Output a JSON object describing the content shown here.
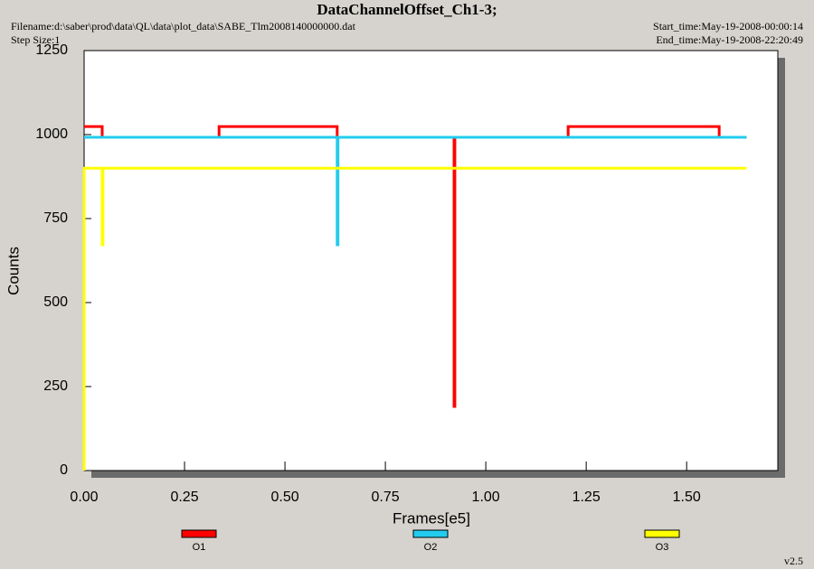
{
  "chart_data": {
    "type": "line",
    "title": "DataChannelOffset_Ch1-3;",
    "filename": "Filename:d:\\saber\\prod\\data\\QL\\data\\plot_data\\SABE_Tlm2008140000000.dat",
    "step_size": "Step Size:1",
    "start_time": "Start_time:May-19-2008-00:00:14",
    "end_time": "End_time:May-19-2008-22:20:49",
    "version": "v2.5",
    "x_label": "Frames[e5]",
    "y_label": "Counts",
    "xlim": [
      0,
      1.727
    ],
    "ylim": [
      0,
      1250
    ],
    "xticks": [
      {
        "value": 0,
        "label": "0.00"
      },
      {
        "value": 0.25,
        "label": "0.25"
      },
      {
        "value": 0.5,
        "label": "0.50"
      },
      {
        "value": 0.75,
        "label": "0.75"
      },
      {
        "value": 1,
        "label": "1.00"
      },
      {
        "value": 1.25,
        "label": "1.25"
      },
      {
        "value": 1.5,
        "label": "1.50"
      }
    ],
    "yticks": [
      0,
      250,
      500,
      750,
      1000,
      1250
    ],
    "series": [
      {
        "name": "O1",
        "color": "#ff0000",
        "x": [
          0,
          0.045,
          0.045,
          0.336,
          0.336,
          0.63,
          0.63,
          0.921,
          0.921,
          0.923,
          0.923,
          1.205,
          1.205,
          1.581,
          1.581,
          1.649
        ],
        "values": [
          1024,
          1024,
          992,
          992,
          1024,
          1024,
          992,
          992,
          191,
          191,
          992,
          992,
          1024,
          1024,
          992,
          992
        ]
      },
      {
        "name": "O2",
        "color": "#22ccee",
        "x": [
          0,
          0.63,
          0.63,
          0.632,
          0.632,
          1.649
        ],
        "values": [
          992,
          992,
          672,
          672,
          992,
          992
        ]
      },
      {
        "name": "O3",
        "color": "#ffff00",
        "x": [
          0,
          0,
          0.045,
          0.045,
          0.047,
          0.047,
          1.649
        ],
        "values": [
          0,
          900,
          900,
          672,
          672,
          900,
          900
        ]
      }
    ]
  }
}
